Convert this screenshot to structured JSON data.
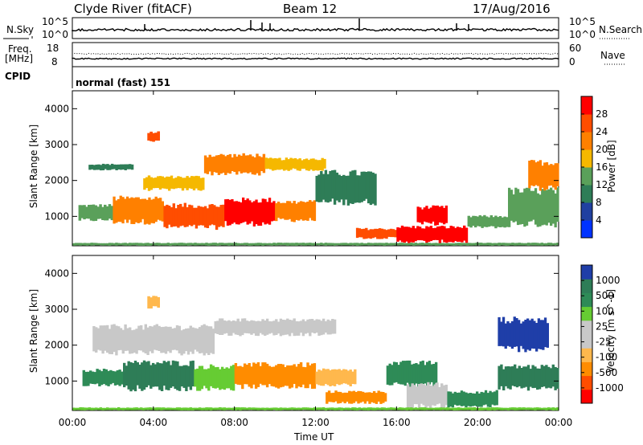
{
  "header": {
    "station": "Clyde River (fitACF)",
    "beam": "Beam 12",
    "date": "17/Aug/2016"
  },
  "top_panels": {
    "nsky_label": "N.Sky",
    "nsky_ticks": [
      "10^5",
      "10^0"
    ],
    "nsearch_label": "N.Search",
    "nsearch_ticks": [
      "10^5",
      "10^0"
    ],
    "freq_label": "Freq.",
    "freq_unit": "[MHz]",
    "freq_ticks": [
      "18",
      "8"
    ],
    "nave_label": "Nave",
    "nave_ticks": [
      "60",
      "0"
    ],
    "cpid_label": "CPID",
    "cpid_text": "normal (fast) 151"
  },
  "colors": {
    "power_scale": [
      "#0033ff",
      "#2040a0",
      "#2e7d57",
      "#5aa05a",
      "#f5b800",
      "#ff8000",
      "#ff4d00",
      "#ff0000"
    ],
    "velocity_scale": [
      "#ff0000",
      "#ff4d00",
      "#ff8c00",
      "#ffb84d",
      "#c8c8c8",
      "#c8c8c8",
      "#66cc33",
      "#2e8b57",
      "#2e7d57",
      "#1f3ea8"
    ]
  },
  "chart_data": [
    {
      "type": "heatmap",
      "name": "power",
      "ylabel": "Slant Range [km]",
      "xlabel": "Time UT",
      "x_ticks": [
        "00:00",
        "04:00",
        "08:00",
        "12:00",
        "16:00",
        "20:00",
        "00:00"
      ],
      "y_ticks": [
        1000,
        2000,
        3000,
        4000
      ],
      "ylim": [
        180,
        4500
      ],
      "xlim_hours": [
        0,
        24
      ],
      "colorbar_label": "Power [dB]",
      "colorbar_ticks": [
        "4",
        "8",
        "12",
        "16",
        "20",
        "24",
        "28"
      ],
      "bands": [
        {
          "t0": 0.3,
          "t1": 2.0,
          "r0": 900,
          "r1": 1300,
          "level": 3
        },
        {
          "t0": 2.0,
          "t1": 4.5,
          "r0": 850,
          "r1": 1500,
          "level": 5
        },
        {
          "t0": 4.5,
          "t1": 7.5,
          "r0": 700,
          "r1": 1300,
          "level": 6
        },
        {
          "t0": 7.5,
          "t1": 10.0,
          "r0": 800,
          "r1": 1450,
          "level": 7
        },
        {
          "t0": 10.0,
          "t1": 12.0,
          "r0": 900,
          "r1": 1400,
          "level": 5
        },
        {
          "t0": 3.5,
          "t1": 6.5,
          "r0": 1750,
          "r1": 2100,
          "level": 4
        },
        {
          "t0": 6.5,
          "t1": 9.5,
          "r0": 2200,
          "r1": 2700,
          "level": 5
        },
        {
          "t0": 9.5,
          "t1": 12.5,
          "r0": 2300,
          "r1": 2600,
          "level": 4
        },
        {
          "t0": 3.7,
          "t1": 4.3,
          "r0": 3100,
          "r1": 3350,
          "level": 6
        },
        {
          "t0": 0.8,
          "t1": 3.0,
          "r0": 2300,
          "r1": 2450,
          "level": 2
        },
        {
          "t0": 12.0,
          "t1": 15.0,
          "r0": 1400,
          "r1": 2200,
          "level": 2
        },
        {
          "t0": 14.0,
          "t1": 16.0,
          "r0": 400,
          "r1": 650,
          "level": 6
        },
        {
          "t0": 16.0,
          "t1": 19.5,
          "r0": 300,
          "r1": 700,
          "level": 7
        },
        {
          "t0": 17.0,
          "t1": 18.5,
          "r0": 800,
          "r1": 1250,
          "level": 7
        },
        {
          "t0": 19.5,
          "t1": 21.5,
          "r0": 700,
          "r1": 1000,
          "level": 3
        },
        {
          "t0": 21.5,
          "t1": 24.0,
          "r0": 800,
          "r1": 1700,
          "level": 3
        },
        {
          "t0": 22.5,
          "t1": 24.0,
          "r0": 1800,
          "r1": 2500,
          "level": 5
        },
        {
          "t0": 0.0,
          "t1": 24.0,
          "r0": 190,
          "r1": 260,
          "level": 3
        }
      ]
    },
    {
      "type": "heatmap",
      "name": "velocity",
      "ylabel": "Slant Range [km]",
      "xlabel": "Time UT",
      "x_ticks": [
        "00:00",
        "04:00",
        "08:00",
        "12:00",
        "16:00",
        "20:00",
        "00:00"
      ],
      "y_ticks": [
        1000,
        2000,
        3000,
        4000
      ],
      "ylim": [
        180,
        4500
      ],
      "xlim_hours": [
        0,
        24
      ],
      "colorbar_label": "Velocity [m s^-1]",
      "colorbar_ticks": [
        "-1000",
        "-500",
        "-100",
        "-25",
        "25",
        "100",
        "500",
        "1000"
      ],
      "bands": [
        {
          "t0": 0.5,
          "t1": 2.5,
          "r0": 900,
          "r1": 1300,
          "level": 7
        },
        {
          "t0": 2.5,
          "t1": 6.0,
          "r0": 800,
          "r1": 1500,
          "level": 8
        },
        {
          "t0": 6.0,
          "t1": 8.0,
          "r0": 800,
          "r1": 1400,
          "level": 6
        },
        {
          "t0": 8.0,
          "t1": 12.0,
          "r0": 850,
          "r1": 1450,
          "level": 2
        },
        {
          "t0": 12.0,
          "t1": 14.0,
          "r0": 900,
          "r1": 1300,
          "level": 3
        },
        {
          "t0": 1.0,
          "t1": 7.0,
          "r0": 1800,
          "r1": 2500,
          "level": 4
        },
        {
          "t0": 7.0,
          "t1": 13.0,
          "r0": 2300,
          "r1": 2700,
          "level": 4
        },
        {
          "t0": 3.7,
          "t1": 4.3,
          "r0": 3050,
          "r1": 3350,
          "level": 3
        },
        {
          "t0": 12.5,
          "t1": 15.5,
          "r0": 400,
          "r1": 700,
          "level": 2
        },
        {
          "t0": 15.5,
          "t1": 18.0,
          "r0": 900,
          "r1": 1500,
          "level": 7
        },
        {
          "t0": 16.5,
          "t1": 18.5,
          "r0": 300,
          "r1": 900,
          "level": 5
        },
        {
          "t0": 18.5,
          "t1": 21.0,
          "r0": 300,
          "r1": 700,
          "level": 7
        },
        {
          "t0": 21.0,
          "t1": 24.0,
          "r0": 800,
          "r1": 1400,
          "level": 8
        },
        {
          "t0": 21.0,
          "t1": 23.5,
          "r0": 1900,
          "r1": 2700,
          "level": 9
        },
        {
          "t0": 0.0,
          "t1": 24.0,
          "r0": 190,
          "r1": 260,
          "level": 6
        }
      ]
    }
  ]
}
